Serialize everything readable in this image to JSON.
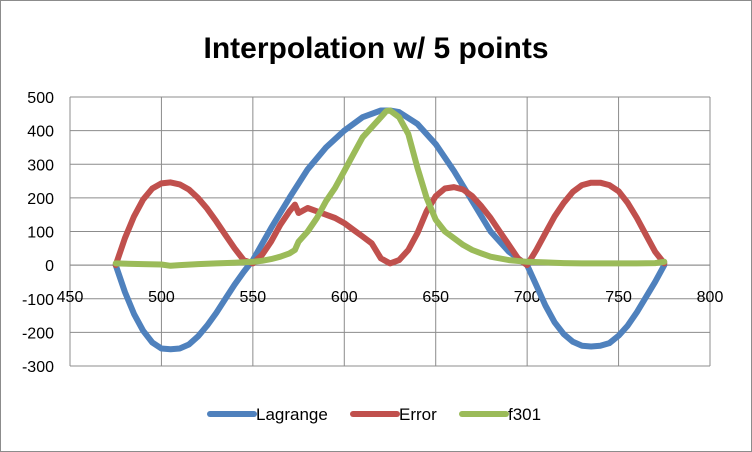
{
  "chart_data": {
    "type": "line",
    "title": "Interpolation w/ 5 points",
    "xlabel": "",
    "ylabel": "",
    "xlim": [
      450,
      800
    ],
    "ylim": [
      -300,
      500
    ],
    "x_ticks": [
      450,
      500,
      550,
      600,
      650,
      700,
      750,
      800
    ],
    "y_ticks": [
      -300,
      -200,
      -100,
      0,
      100,
      200,
      300,
      400,
      500
    ],
    "grid": true,
    "legend_position": "bottom",
    "series": [
      {
        "name": "Lagrange",
        "color": "#4f81bd",
        "x": [
          475,
          480,
          485,
          490,
          495,
          500,
          505,
          510,
          515,
          520,
          525,
          530,
          535,
          540,
          545,
          550,
          560,
          570,
          580,
          590,
          600,
          610,
          620,
          625,
          630,
          640,
          650,
          660,
          670,
          680,
          690,
          700,
          705,
          710,
          715,
          720,
          725,
          730,
          735,
          740,
          745,
          750,
          755,
          760,
          765,
          770,
          775
        ],
        "y": [
          0,
          -80,
          -145,
          -195,
          -230,
          -248,
          -250,
          -248,
          -236,
          -212,
          -180,
          -142,
          -100,
          -58,
          -20,
          15,
          110,
          200,
          285,
          350,
          400,
          440,
          460,
          460,
          455,
          420,
          360,
          280,
          190,
          100,
          40,
          0,
          -60,
          -120,
          -170,
          -205,
          -228,
          -240,
          -242,
          -240,
          -232,
          -210,
          -180,
          -140,
          -95,
          -50,
          0
        ]
      },
      {
        "name": "Error",
        "color": "#c0504d",
        "x": [
          475,
          480,
          485,
          490,
          495,
          500,
          505,
          510,
          515,
          520,
          525,
          530,
          535,
          540,
          545,
          550,
          555,
          560,
          565,
          570,
          573,
          575,
          580,
          585,
          590,
          595,
          600,
          605,
          610,
          615,
          620,
          625,
          630,
          635,
          640,
          645,
          650,
          655,
          660,
          665,
          670,
          675,
          680,
          685,
          690,
          695,
          700,
          705,
          710,
          715,
          720,
          725,
          730,
          735,
          740,
          745,
          750,
          755,
          760,
          765,
          770,
          775
        ],
        "y": [
          0,
          80,
          145,
          195,
          228,
          243,
          246,
          240,
          225,
          200,
          168,
          130,
          90,
          50,
          15,
          5,
          30,
          70,
          120,
          160,
          180,
          155,
          170,
          160,
          150,
          140,
          125,
          105,
          85,
          65,
          20,
          5,
          15,
          45,
          95,
          160,
          205,
          228,
          232,
          225,
          205,
          175,
          140,
          100,
          60,
          20,
          0,
          45,
          95,
          145,
          185,
          218,
          238,
          245,
          245,
          238,
          220,
          185,
          140,
          90,
          40,
          5
        ]
      },
      {
        "name": "f301",
        "color": "#9bbb59",
        "x": [
          475,
          490,
          500,
          505,
          510,
          520,
          530,
          540,
          550,
          555,
          560,
          565,
          570,
          573,
          575,
          580,
          585,
          590,
          595,
          600,
          605,
          610,
          615,
          620,
          623,
          625,
          630,
          635,
          640,
          645,
          650,
          655,
          660,
          665,
          670,
          675,
          680,
          690,
          700,
          710,
          720,
          730,
          740,
          750,
          760,
          770,
          775
        ],
        "y": [
          5,
          3,
          2,
          -2,
          0,
          3,
          5,
          7,
          10,
          13,
          18,
          25,
          35,
          45,
          70,
          100,
          140,
          190,
          230,
          280,
          330,
          380,
          410,
          440,
          458,
          460,
          440,
          390,
          290,
          200,
          135,
          100,
          80,
          60,
          45,
          35,
          25,
          15,
          10,
          8,
          6,
          5,
          5,
          5,
          5,
          6,
          10
        ]
      }
    ]
  }
}
